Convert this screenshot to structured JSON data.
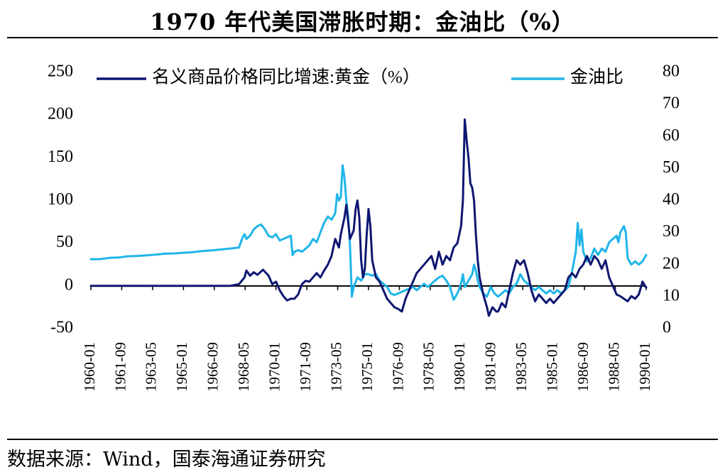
{
  "title": "1970 年代美国滞胀时期：金油比（%）",
  "source": "数据来源：Wind，国泰海通证券研究",
  "colors": {
    "gold_growth": "#0e1670",
    "gold_oil_ratio": "#1fb5e8",
    "axis": "#000000"
  },
  "chart_data": {
    "type": "line",
    "title": "1970 年代美国滞胀时期：金油比（%）",
    "x_tick_labels": [
      "1960-01",
      "1961-09",
      "1963-05",
      "1965-01",
      "1966-09",
      "1968-05",
      "1970-01",
      "1971-09",
      "1973-05",
      "1975-01",
      "1976-09",
      "1978-05",
      "1980-01",
      "1981-09",
      "1983-05",
      "1985-01",
      "1986-09",
      "1988-05",
      "1990-01"
    ],
    "left_axis": {
      "ylim": [
        -50,
        250
      ],
      "ticks": [
        "-50",
        "0",
        "50",
        "100",
        "150",
        "200",
        "250"
      ]
    },
    "right_axis": {
      "ylim": [
        0,
        80
      ],
      "ticks": [
        "0",
        "10",
        "20",
        "30",
        "40",
        "50",
        "60",
        "70",
        "80"
      ]
    },
    "legend_position": "top",
    "series": [
      {
        "name": "名义商品价格同比增速:黄金（%）",
        "axis": "left",
        "points": [
          [
            1960.0,
            0
          ],
          [
            1962.0,
            0
          ],
          [
            1964.0,
            0
          ],
          [
            1966.0,
            0
          ],
          [
            1967.5,
            0
          ],
          [
            1968.0,
            2
          ],
          [
            1968.3,
            10
          ],
          [
            1968.4,
            18
          ],
          [
            1968.6,
            12
          ],
          [
            1968.8,
            16
          ],
          [
            1969.0,
            13
          ],
          [
            1969.3,
            19
          ],
          [
            1969.6,
            12
          ],
          [
            1969.8,
            2
          ],
          [
            1970.0,
            5
          ],
          [
            1970.2,
            -5
          ],
          [
            1970.4,
            -12
          ],
          [
            1970.6,
            -17
          ],
          [
            1970.8,
            -15
          ],
          [
            1971.0,
            -15
          ],
          [
            1971.2,
            -10
          ],
          [
            1971.4,
            2
          ],
          [
            1971.6,
            6
          ],
          [
            1971.8,
            5
          ],
          [
            1972.0,
            10
          ],
          [
            1972.2,
            15
          ],
          [
            1972.4,
            10
          ],
          [
            1972.6,
            18
          ],
          [
            1972.8,
            25
          ],
          [
            1973.0,
            35
          ],
          [
            1973.2,
            55
          ],
          [
            1973.4,
            45
          ],
          [
            1973.5,
            60
          ],
          [
            1973.7,
            80
          ],
          [
            1973.8,
            95
          ],
          [
            1973.9,
            75
          ],
          [
            1974.0,
            55
          ],
          [
            1974.2,
            65
          ],
          [
            1974.3,
            90
          ],
          [
            1974.4,
            100
          ],
          [
            1974.5,
            80
          ],
          [
            1974.6,
            30
          ],
          [
            1974.7,
            10
          ],
          [
            1974.8,
            20
          ],
          [
            1974.9,
            60
          ],
          [
            1975.0,
            90
          ],
          [
            1975.1,
            70
          ],
          [
            1975.2,
            30
          ],
          [
            1975.4,
            10
          ],
          [
            1975.6,
            5
          ],
          [
            1975.8,
            -5
          ],
          [
            1976.0,
            -15
          ],
          [
            1976.2,
            -20
          ],
          [
            1976.4,
            -25
          ],
          [
            1976.6,
            -27
          ],
          [
            1976.8,
            -30
          ],
          [
            1977.0,
            -15
          ],
          [
            1977.2,
            -5
          ],
          [
            1977.4,
            5
          ],
          [
            1977.6,
            15
          ],
          [
            1977.8,
            20
          ],
          [
            1978.0,
            25
          ],
          [
            1978.2,
            30
          ],
          [
            1978.4,
            35
          ],
          [
            1978.6,
            20
          ],
          [
            1978.8,
            40
          ],
          [
            1979.0,
            25
          ],
          [
            1979.2,
            35
          ],
          [
            1979.4,
            30
          ],
          [
            1979.6,
            45
          ],
          [
            1979.8,
            50
          ],
          [
            1980.0,
            70
          ],
          [
            1980.1,
            100
          ],
          [
            1980.2,
            195
          ],
          [
            1980.3,
            170
          ],
          [
            1980.4,
            150
          ],
          [
            1980.5,
            120
          ],
          [
            1980.6,
            115
          ],
          [
            1980.7,
            100
          ],
          [
            1980.8,
            60
          ],
          [
            1980.9,
            30
          ],
          [
            1981.0,
            10
          ],
          [
            1981.2,
            -10
          ],
          [
            1981.4,
            -25
          ],
          [
            1981.5,
            -35
          ],
          [
            1981.7,
            -25
          ],
          [
            1981.9,
            -30
          ],
          [
            1982.0,
            -30
          ],
          [
            1982.2,
            -20
          ],
          [
            1982.4,
            -25
          ],
          [
            1982.6,
            -5
          ],
          [
            1982.8,
            15
          ],
          [
            1983.0,
            30
          ],
          [
            1983.2,
            25
          ],
          [
            1983.4,
            30
          ],
          [
            1983.6,
            15
          ],
          [
            1983.8,
            -5
          ],
          [
            1984.0,
            -18
          ],
          [
            1984.2,
            -10
          ],
          [
            1984.4,
            -15
          ],
          [
            1984.6,
            -20
          ],
          [
            1984.8,
            -15
          ],
          [
            1985.0,
            -20
          ],
          [
            1985.2,
            -15
          ],
          [
            1985.4,
            -10
          ],
          [
            1985.6,
            -5
          ],
          [
            1985.8,
            10
          ],
          [
            1986.0,
            15
          ],
          [
            1986.2,
            10
          ],
          [
            1986.4,
            20
          ],
          [
            1986.6,
            25
          ],
          [
            1986.8,
            35
          ],
          [
            1987.0,
            25
          ],
          [
            1987.2,
            35
          ],
          [
            1987.4,
            30
          ],
          [
            1987.6,
            20
          ],
          [
            1987.8,
            30
          ],
          [
            1988.0,
            10
          ],
          [
            1988.2,
            0
          ],
          [
            1988.4,
            -10
          ],
          [
            1988.6,
            -12
          ],
          [
            1988.8,
            -15
          ],
          [
            1989.0,
            -18
          ],
          [
            1989.2,
            -12
          ],
          [
            1989.4,
            -15
          ],
          [
            1989.6,
            -10
          ],
          [
            1989.8,
            5
          ],
          [
            1990.0,
            -2
          ]
        ]
      },
      {
        "name": "金油比",
        "axis": "right",
        "points": [
          [
            1960.0,
            21.7
          ],
          [
            1960.5,
            21.7
          ],
          [
            1961.0,
            22.1
          ],
          [
            1961.5,
            22.2
          ],
          [
            1962.0,
            22.6
          ],
          [
            1962.5,
            22.7
          ],
          [
            1963.0,
            22.9
          ],
          [
            1963.5,
            23.1
          ],
          [
            1964.0,
            23.4
          ],
          [
            1964.5,
            23.5
          ],
          [
            1965.0,
            23.7
          ],
          [
            1965.5,
            23.9
          ],
          [
            1966.0,
            24.2
          ],
          [
            1966.5,
            24.4
          ],
          [
            1967.0,
            24.7
          ],
          [
            1967.5,
            25.0
          ],
          [
            1968.0,
            25.3
          ],
          [
            1968.2,
            28.5
          ],
          [
            1968.3,
            29.5
          ],
          [
            1968.4,
            28
          ],
          [
            1968.6,
            29
          ],
          [
            1968.8,
            31
          ],
          [
            1969.0,
            32
          ],
          [
            1969.2,
            32.5
          ],
          [
            1969.4,
            31
          ],
          [
            1969.6,
            29
          ],
          [
            1969.8,
            28.5
          ],
          [
            1970.0,
            29.5
          ],
          [
            1970.2,
            27.5
          ],
          [
            1970.4,
            28
          ],
          [
            1970.6,
            28.5
          ],
          [
            1970.8,
            29
          ],
          [
            1970.9,
            23
          ],
          [
            1971.0,
            24
          ],
          [
            1971.2,
            24.5
          ],
          [
            1971.4,
            24
          ],
          [
            1971.6,
            25
          ],
          [
            1971.8,
            26
          ],
          [
            1972.0,
            28
          ],
          [
            1972.2,
            27
          ],
          [
            1972.4,
            30
          ],
          [
            1972.6,
            33
          ],
          [
            1972.8,
            35
          ],
          [
            1973.0,
            34
          ],
          [
            1973.2,
            36
          ],
          [
            1973.3,
            42
          ],
          [
            1973.4,
            40
          ],
          [
            1973.5,
            41
          ],
          [
            1973.6,
            51
          ],
          [
            1973.7,
            47
          ],
          [
            1973.8,
            40
          ],
          [
            1973.9,
            35
          ],
          [
            1974.0,
            26
          ],
          [
            1974.1,
            10
          ],
          [
            1974.2,
            13
          ],
          [
            1974.4,
            16
          ],
          [
            1974.6,
            15
          ],
          [
            1974.8,
            17
          ],
          [
            1975.0,
            17
          ],
          [
            1975.2,
            16.5
          ],
          [
            1975.4,
            17
          ],
          [
            1975.6,
            15
          ],
          [
            1975.8,
            14
          ],
          [
            1976.0,
            13
          ],
          [
            1976.2,
            11
          ],
          [
            1976.4,
            10.5
          ],
          [
            1976.6,
            11
          ],
          [
            1976.8,
            11.5
          ],
          [
            1977.0,
            12
          ],
          [
            1977.2,
            12.5
          ],
          [
            1977.4,
            13
          ],
          [
            1977.6,
            12
          ],
          [
            1977.8,
            13
          ],
          [
            1978.0,
            14
          ],
          [
            1978.2,
            13
          ],
          [
            1978.4,
            14
          ],
          [
            1978.6,
            15
          ],
          [
            1978.8,
            16
          ],
          [
            1979.0,
            16.5
          ],
          [
            1979.2,
            15
          ],
          [
            1979.4,
            13
          ],
          [
            1979.6,
            9
          ],
          [
            1979.8,
            11
          ],
          [
            1980.0,
            14
          ],
          [
            1980.1,
            17
          ],
          [
            1980.2,
            13
          ],
          [
            1980.4,
            15
          ],
          [
            1980.6,
            17
          ],
          [
            1980.7,
            20
          ],
          [
            1980.8,
            18
          ],
          [
            1980.9,
            15
          ],
          [
            1981.0,
            13
          ],
          [
            1981.2,
            11
          ],
          [
            1981.4,
            10
          ],
          [
            1981.6,
            13
          ],
          [
            1981.8,
            11
          ],
          [
            1982.0,
            10
          ],
          [
            1982.2,
            11
          ],
          [
            1982.4,
            12
          ],
          [
            1982.6,
            11
          ],
          [
            1982.8,
            13
          ],
          [
            1983.0,
            14
          ],
          [
            1983.2,
            17
          ],
          [
            1983.4,
            15
          ],
          [
            1983.6,
            14
          ],
          [
            1983.8,
            13
          ],
          [
            1984.0,
            12
          ],
          [
            1984.2,
            13
          ],
          [
            1984.4,
            12
          ],
          [
            1984.6,
            11
          ],
          [
            1984.8,
            12
          ],
          [
            1985.0,
            11
          ],
          [
            1985.2,
            12
          ],
          [
            1985.4,
            11
          ],
          [
            1985.6,
            12
          ],
          [
            1985.8,
            13
          ],
          [
            1986.0,
            18
          ],
          [
            1986.2,
            24
          ],
          [
            1986.3,
            33
          ],
          [
            1986.4,
            26
          ],
          [
            1986.5,
            31
          ],
          [
            1986.6,
            24
          ],
          [
            1986.8,
            21
          ],
          [
            1987.0,
            22
          ],
          [
            1987.2,
            25
          ],
          [
            1987.4,
            23
          ],
          [
            1987.6,
            25
          ],
          [
            1987.8,
            24
          ],
          [
            1988.0,
            27
          ],
          [
            1988.2,
            28
          ],
          [
            1988.4,
            29
          ],
          [
            1988.5,
            27
          ],
          [
            1988.6,
            30
          ],
          [
            1988.8,
            32
          ],
          [
            1988.9,
            30
          ],
          [
            1989.0,
            22
          ],
          [
            1989.2,
            20
          ],
          [
            1989.4,
            21
          ],
          [
            1989.6,
            20
          ],
          [
            1989.8,
            21
          ],
          [
            1990.0,
            23
          ]
        ]
      }
    ]
  }
}
